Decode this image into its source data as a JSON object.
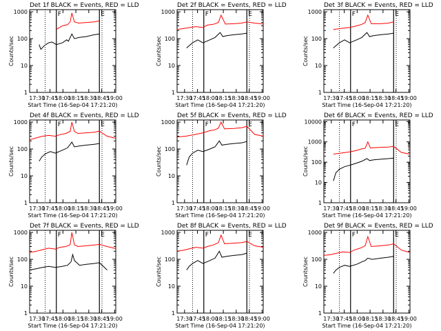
{
  "figure": {
    "background": "#ffffff",
    "axis_color": "#000000",
    "events_color": "#000000",
    "lld_color": "#ff0000",
    "xlabel": "Start Time (16-Sep-04 17:21:20)",
    "ylabel": "Counts/sec",
    "x_ticks": [
      "17:30",
      "17:45",
      "18:00",
      "18:15",
      "18:30",
      "18:45",
      "19:00"
    ],
    "x_tick_minutes": [
      8.67,
      23.67,
      38.67,
      53.67,
      68.67,
      83.67,
      98.67
    ],
    "x_range_minutes": [
      0,
      100
    ],
    "marker_labels": {
      "flare": "F",
      "eclipse": "E"
    }
  },
  "chart_data": [
    {
      "type": "line",
      "title": "Det 1f BLACK = Events, RED = LLD",
      "xlabel": "Start Time (16-Sep-04 17:21:20)",
      "ylabel": "Counts/sec",
      "y_scale": "log",
      "yticks": [
        "1000",
        "100",
        "10",
        "1"
      ],
      "ylim": [
        1,
        1200
      ],
      "xlim_minutes": [
        0,
        100
      ],
      "vlines_minutes": {
        "dotted": [
          18,
          84
        ],
        "solid_flare": 31,
        "solid_eclipse": 81
      },
      "series": [
        {
          "name": "LLD",
          "color": "#ff0000",
          "x": [
            31,
            38,
            44,
            47,
            49,
            52,
            57,
            66,
            75,
            81
          ],
          "y": [
            220,
            300,
            330,
            420,
            900,
            420,
            380,
            400,
            420,
            460
          ]
        },
        {
          "name": "Events",
          "color": "#000000",
          "x": [
            11,
            13,
            17,
            22,
            26,
            31,
            38,
            43,
            45,
            49,
            52,
            57,
            66,
            75,
            81
          ],
          "y": [
            60,
            40,
            55,
            70,
            75,
            60,
            70,
            90,
            80,
            150,
            100,
            110,
            120,
            140,
            150
          ]
        }
      ]
    },
    {
      "type": "line",
      "title": "Det 2f BLACK = Events, RED = LLD",
      "xlabel": "Start Time (16-Sep-04 17:21:20)",
      "ylabel": "Counts/sec",
      "y_scale": "log",
      "yticks": [
        "1000",
        "100",
        "10",
        "1"
      ],
      "ylim": [
        1,
        1200
      ],
      "xlim_minutes": [
        0,
        100
      ],
      "vlines_minutes": {
        "dotted": [
          18,
          84
        ],
        "solid_flare": 31,
        "solid_eclipse": 81
      },
      "series": [
        {
          "name": "LLD",
          "color": "#ff0000",
          "x": [
            0,
            8,
            15,
            22,
            30,
            35,
            42,
            48,
            51,
            56,
            66,
            75,
            81,
            90,
            100
          ],
          "y": [
            220,
            240,
            260,
            280,
            260,
            320,
            340,
            400,
            750,
            350,
            360,
            380,
            420,
            380,
            350
          ],
          "x_extra_note": ""
        },
        {
          "name": "Events",
          "color": "#000000",
          "x": [
            11,
            14,
            18,
            24,
            30,
            38,
            44,
            50,
            53,
            58,
            66,
            75,
            81
          ],
          "y": [
            45,
            55,
            70,
            90,
            70,
            90,
            110,
            170,
            120,
            130,
            140,
            150,
            160
          ]
        }
      ]
    },
    {
      "type": "line",
      "title": "Det 3f BLACK = Events, RED = LLD",
      "xlabel": "Start Time (16-Sep-04 17:21:20)",
      "ylabel": "Counts/sec",
      "y_scale": "log",
      "yticks": [
        "1000",
        "100",
        "10",
        "1"
      ],
      "ylim": [
        1,
        1200
      ],
      "xlim_minutes": [
        0,
        100
      ],
      "vlines_minutes": {
        "dotted": [
          18,
          84
        ],
        "solid_flare": 31,
        "solid_eclipse": 81
      },
      "series": [
        {
          "name": "LLD",
          "color": "#ff0000",
          "x": [
            11,
            20,
            30,
            38,
            44,
            48,
            51,
            55,
            66,
            75,
            81
          ],
          "y": [
            220,
            240,
            260,
            300,
            340,
            400,
            750,
            360,
            360,
            380,
            420
          ]
        },
        {
          "name": "Events",
          "color": "#000000",
          "x": [
            11,
            14,
            18,
            24,
            30,
            38,
            44,
            50,
            53,
            58,
            66,
            75,
            81
          ],
          "y": [
            45,
            55,
            70,
            90,
            70,
            90,
            110,
            170,
            120,
            130,
            140,
            150,
            160
          ]
        }
      ]
    },
    {
      "type": "line",
      "title": "Det 4f BLACK = Events, RED = LLD",
      "xlabel": "Start Time (16-Sep-04 17:21:20)",
      "ylabel": "Counts/sec",
      "y_scale": "log",
      "yticks": [
        "1000",
        "100",
        "10",
        "1"
      ],
      "ylim": [
        1,
        1200
      ],
      "xlim_minutes": [
        0,
        100
      ],
      "vlines_minutes": {
        "dotted": [
          18,
          84
        ],
        "solid_flare": 31,
        "solid_eclipse": 81
      },
      "series": [
        {
          "name": "LLD",
          "color": "#ff0000",
          "x": [
            0,
            8,
            15,
            22,
            30,
            35,
            42,
            47,
            49,
            52,
            56,
            66,
            75,
            81,
            90,
            100
          ],
          "y": [
            220,
            260,
            300,
            320,
            300,
            340,
            380,
            450,
            1000,
            450,
            380,
            400,
            420,
            460,
            300,
            250
          ]
        },
        {
          "name": "Events",
          "color": "#000000",
          "x": [
            11,
            14,
            18,
            24,
            30,
            38,
            44,
            49,
            52,
            58,
            66,
            75,
            81
          ],
          "y": [
            35,
            50,
            65,
            80,
            70,
            90,
            110,
            180,
            120,
            130,
            140,
            150,
            160
          ]
        }
      ]
    },
    {
      "type": "line",
      "title": "Det 5f BLACK = Events, RED = LLD",
      "xlabel": "Start Time (16-Sep-04 17:21:20)",
      "ylabel": "Counts/sec",
      "y_scale": "log",
      "yticks": [
        "1000",
        "100",
        "10",
        "1"
      ],
      "ylim": [
        1,
        1200
      ],
      "xlim_minutes": [
        0,
        100
      ],
      "vlines_minutes": {
        "dotted": [
          18,
          84
        ],
        "solid_flare": 31,
        "solid_eclipse": 81
      },
      "series": [
        {
          "name": "LLD",
          "color": "#ff0000",
          "x": [
            0,
            10,
            20,
            30,
            38,
            44,
            48,
            51,
            55,
            66,
            75,
            81,
            90,
            100
          ],
          "y": [
            280,
            300,
            340,
            400,
            480,
            520,
            600,
            1000,
            560,
            580,
            620,
            700,
            350,
            300
          ]
        },
        {
          "name": "Events",
          "color": "#000000",
          "x": [
            11,
            14,
            18,
            24,
            30,
            38,
            44,
            49,
            52,
            58,
            66,
            75,
            81
          ],
          "y": [
            25,
            50,
            70,
            90,
            80,
            100,
            120,
            200,
            140,
            150,
            160,
            170,
            190
          ]
        }
      ]
    },
    {
      "type": "line",
      "title": "Det 6f BLACK = Events, RED = LLD",
      "xlabel": "Start Time (16-Sep-04 17:21:20)",
      "ylabel": "Counts/sec",
      "y_scale": "log",
      "yticks": [
        "10000",
        "1000",
        "100",
        "10",
        "1"
      ],
      "ylim": [
        1,
        12000
      ],
      "xlim_minutes": [
        0,
        100
      ],
      "vlines_minutes": {
        "dotted": [
          18,
          84
        ],
        "solid_flare": 31,
        "solid_eclipse": 81
      },
      "series": [
        {
          "name": "LLD",
          "color": "#ff0000",
          "x": [
            11,
            20,
            30,
            38,
            44,
            48,
            51,
            54,
            60,
            66,
            75,
            81,
            90,
            100
          ],
          "y": [
            250,
            280,
            320,
            380,
            450,
            480,
            1000,
            500,
            520,
            540,
            560,
            600,
            300,
            250
          ]
        },
        {
          "name": "Events",
          "color": "#000000",
          "x": [
            11,
            14,
            18,
            24,
            30,
            38,
            44,
            50,
            53,
            58,
            66,
            75,
            81
          ],
          "y": [
            12,
            30,
            45,
            60,
            70,
            90,
            110,
            150,
            120,
            130,
            140,
            150,
            160
          ]
        }
      ]
    },
    {
      "type": "line",
      "title": "Det 7f BLACK = Events, RED = LLD",
      "xlabel": "Start Time (16-Sep-04 17:21:20)",
      "ylabel": "Counts/sec",
      "y_scale": "log",
      "yticks": [
        "1000",
        "100",
        "10",
        "1"
      ],
      "ylim": [
        1,
        1200
      ],
      "xlim_minutes": [
        0,
        100
      ],
      "vlines_minutes": {
        "dotted": [
          18,
          84
        ],
        "solid_flare": 31,
        "solid_eclipse": 81
      },
      "series": [
        {
          "name": "LLD",
          "color": "#ff0000",
          "x": [
            0,
            8,
            15,
            22,
            30,
            35,
            42,
            47,
            49,
            52,
            56,
            66,
            75,
            81,
            90,
            100
          ],
          "y": [
            180,
            200,
            230,
            260,
            240,
            280,
            300,
            350,
            1000,
            350,
            300,
            320,
            340,
            360,
            300,
            250
          ]
        },
        {
          "name": "Events",
          "color": "#000000",
          "x": [
            0,
            8,
            15,
            22,
            30,
            38,
            44,
            48,
            50,
            52,
            58,
            66,
            75,
            81,
            90
          ],
          "y": [
            40,
            45,
            50,
            55,
            50,
            55,
            60,
            80,
            150,
            90,
            60,
            65,
            70,
            75,
            40
          ]
        }
      ]
    },
    {
      "type": "line",
      "title": "Det 8f BLACK = Events, RED = LLD",
      "xlabel": "Start Time (16-Sep-04 17:21:20)",
      "ylabel": "Counts/sec",
      "y_scale": "log",
      "yticks": [
        "1000",
        "100",
        "10",
        "1"
      ],
      "ylim": [
        1,
        1200
      ],
      "xlim_minutes": [
        0,
        100
      ],
      "vlines_minutes": {
        "dotted": [
          18,
          84
        ],
        "solid_flare": 31,
        "solid_eclipse": 81
      },
      "series": [
        {
          "name": "LLD",
          "color": "#ff0000",
          "x": [
            0,
            8,
            15,
            22,
            30,
            35,
            42,
            48,
            51,
            55,
            66,
            75,
            81,
            90,
            100
          ],
          "y": [
            200,
            220,
            250,
            280,
            260,
            300,
            340,
            420,
            800,
            380,
            400,
            420,
            460,
            320,
            280
          ]
        },
        {
          "name": "Events",
          "color": "#000000",
          "x": [
            11,
            14,
            18,
            24,
            30,
            38,
            44,
            49,
            52,
            58,
            66,
            75,
            81
          ],
          "y": [
            40,
            55,
            70,
            90,
            70,
            90,
            110,
            200,
            120,
            130,
            140,
            150,
            170
          ]
        }
      ]
    },
    {
      "type": "line",
      "title": "Det 9f BLACK = Events, RED = LLD",
      "xlabel": "Start Time (16-Sep-04 17:21:20)",
      "ylabel": "Counts/sec",
      "y_scale": "log",
      "yticks": [
        "1000",
        "100",
        "10",
        "1"
      ],
      "ylim": [
        1,
        1200
      ],
      "xlim_minutes": [
        0,
        100
      ],
      "vlines_minutes": {
        "dotted": [
          18,
          84
        ],
        "solid_flare": 31,
        "solid_eclipse": 81
      },
      "series": [
        {
          "name": "LLD",
          "color": "#ff0000",
          "x": [
            0,
            8,
            15,
            22,
            30,
            35,
            42,
            48,
            51,
            55,
            66,
            75,
            81,
            90,
            100
          ],
          "y": [
            140,
            150,
            170,
            190,
            180,
            220,
            260,
            320,
            700,
            300,
            320,
            340,
            380,
            220,
            180
          ]
        },
        {
          "name": "Events",
          "color": "#000000",
          "x": [
            11,
            14,
            18,
            24,
            30,
            38,
            44,
            48,
            51,
            56,
            66,
            75,
            81
          ],
          "y": [
            30,
            40,
            50,
            60,
            55,
            65,
            80,
            90,
            110,
            100,
            110,
            120,
            130
          ]
        }
      ]
    }
  ]
}
